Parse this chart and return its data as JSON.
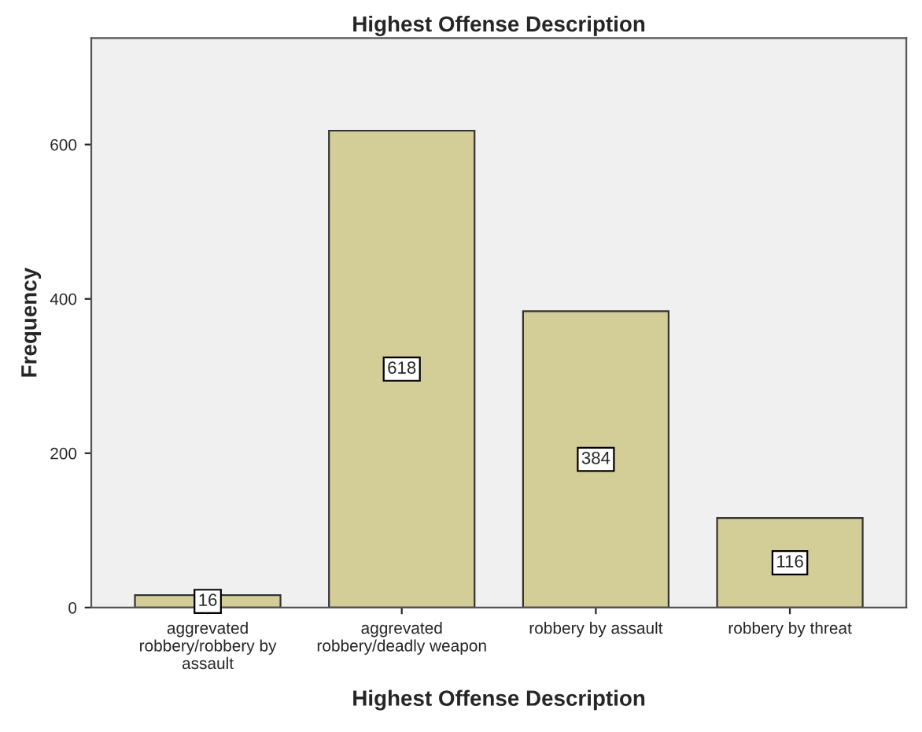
{
  "chart_data": {
    "type": "bar",
    "title": "Highest Offense Description",
    "xlabel": "Highest Offense Description",
    "ylabel": "Frequency",
    "categories": [
      "aggrevated\nrobbery/robbery by\nassault",
      "aggrevated\nrobbery/deadly weapon",
      "robbery by assault",
      "robbery by threat"
    ],
    "values": [
      16,
      618,
      384,
      116
    ],
    "color": "#d3ce98",
    "ylim": [
      0,
      738
    ],
    "yticks": [
      0,
      200,
      400,
      600
    ],
    "data_labels": true,
    "grid": false,
    "legend": false
  }
}
